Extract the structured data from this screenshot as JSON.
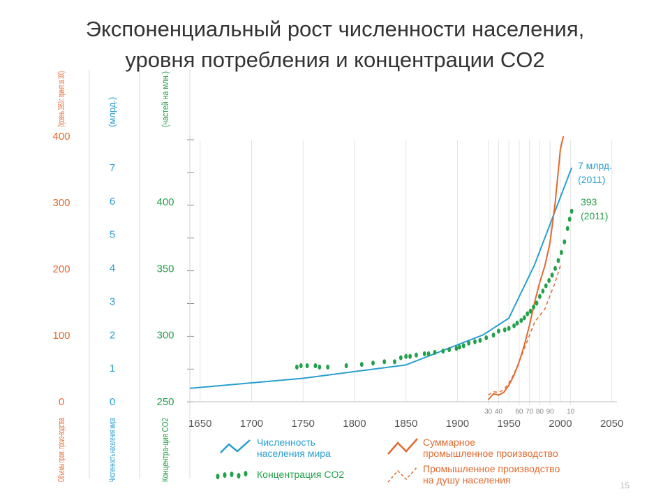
{
  "slide": {
    "title_line1": "Экспоненциальный рост численности населения,",
    "title_line2": "уровня потребления и концентрации CO2",
    "page_number": "15"
  },
  "chart_data": {
    "type": "line",
    "x_ticks": [
      1650,
      1700,
      1750,
      1800,
      1850,
      1900,
      1950,
      2000,
      2050
    ],
    "xlim": [
      1640,
      2055
    ],
    "decade_labels": [
      "30",
      "40",
      "60",
      "70",
      "80",
      "90",
      "10"
    ],
    "axes": [
      {
        "header": "(Уровень 1963 г. принят за 100)",
        "footer": "Объемы пром. произ-водства",
        "ticks": [
          "0",
          "100",
          "200",
          "300",
          "400"
        ],
        "color": "#e06a30"
      },
      {
        "header": "(млрд.)",
        "footer": "Численность населения мира",
        "ticks": [
          "0",
          "1",
          "2",
          "3",
          "4",
          "5",
          "6",
          "7"
        ],
        "color": "#2a9fd0"
      },
      {
        "header": "(частей на млн.)",
        "footer": "Концентра-ция CO2",
        "ticks": [
          "250",
          "300",
          "350",
          "400"
        ],
        "color": "#23a04a"
      }
    ],
    "series": [
      {
        "name": "Численность населения мира",
        "color": "#2a9fd0",
        "axis": "population",
        "x": [
          1640,
          1750,
          1850,
          1925,
          1950,
          1975,
          2011
        ],
        "y": [
          0.4,
          0.7,
          1.1,
          2.0,
          2.5,
          4.1,
          7.0
        ]
      },
      {
        "name": "Суммарное промышленное производство",
        "color": "#e06a30",
        "axis": "industry",
        "x": [
          1930,
          1935,
          1940,
          1945,
          1950,
          1955,
          1960,
          1965,
          1970,
          1975,
          1980,
          1985,
          1990,
          1995,
          2000,
          2003
        ],
        "y": [
          3,
          12,
          10,
          14,
          25,
          40,
          60,
          85,
          115,
          150,
          180,
          205,
          240,
          300,
          380,
          400
        ]
      },
      {
        "name": "Промышленное производство на душу населения",
        "color": "#e06a30",
        "dashed": true,
        "axis": "industry",
        "x": [
          1930,
          1935,
          1940,
          1945,
          1950,
          1955,
          1960,
          1965,
          1970,
          1975,
          1980,
          1985,
          1990,
          1995,
          2000
        ],
        "y": [
          10,
          15,
          14,
          18,
          28,
          42,
          60,
          80,
          100,
          120,
          130,
          140,
          160,
          180,
          205
        ]
      },
      {
        "name": "Концентрация CO2",
        "color": "#23a04a",
        "dots": true,
        "axis": "co2",
        "x": [
          1744,
          1748,
          1754,
          1762,
          1766,
          1774,
          1792,
          1807,
          1818,
          1829,
          1839,
          1845,
          1850,
          1854,
          1860,
          1868,
          1872,
          1878,
          1886,
          1892,
          1899,
          1902,
          1906,
          1911,
          1917,
          1922,
          1928,
          1935,
          1940,
          1946,
          1950,
          1955,
          1958,
          1962,
          1965,
          1968,
          1971,
          1974,
          1977,
          1980,
          1983,
          1986,
          1989,
          1992,
          1995,
          1998,
          2001,
          2004,
          2007,
          2009,
          2011
        ],
        "y": [
          276,
          277,
          277,
          277,
          276,
          276,
          277,
          278,
          279,
          280,
          280,
          283,
          284,
          284,
          285,
          286,
          286,
          287,
          288,
          289,
          290,
          291,
          292,
          294,
          295,
          296,
          298,
          300,
          303,
          304,
          305,
          307,
          309,
          311,
          313,
          316,
          318,
          321,
          324,
          329,
          333,
          337,
          341,
          345,
          350,
          356,
          362,
          370,
          380,
          387,
          393
        ]
      }
    ],
    "annotations": [
      {
        "line1": "7 млрд.",
        "line2": "(2011)",
        "color": "#2a9fd0"
      },
      {
        "line1": "393",
        "line2": "(2011)",
        "color": "#23a04a"
      }
    ],
    "legend": {
      "population": "Численность населения мира",
      "industry_total": "Суммарное промышленное производство",
      "industry_per_capita": "Промышленное производство на душу населения",
      "co2": "Концентрация CO2"
    }
  }
}
